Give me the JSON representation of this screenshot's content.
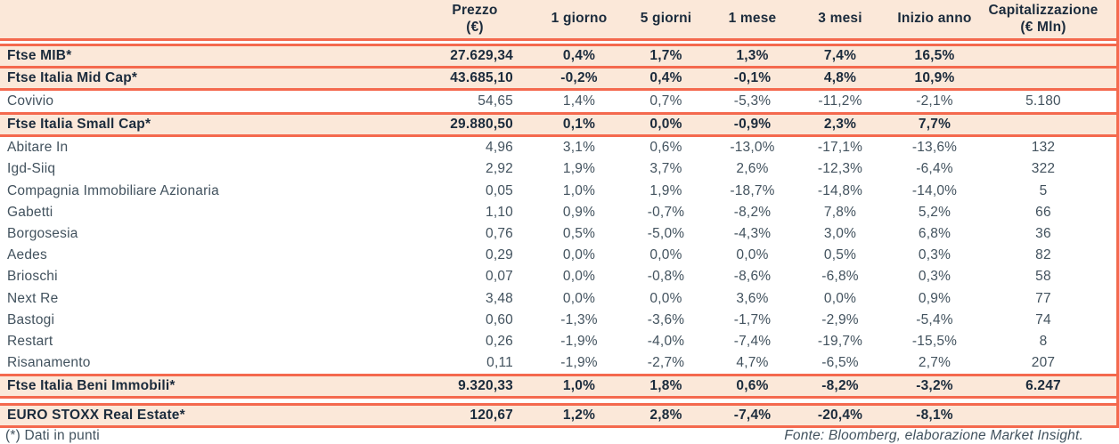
{
  "colors": {
    "accent_line": "#f4694e",
    "highlight_row_bg": "#fbe8d9",
    "heading_text": "#1b2b3c",
    "body_text": "#42525e"
  },
  "chart_data": {
    "type": "table",
    "header": {
      "name": "",
      "prezzo_title": "Prezzo",
      "prezzo_unit": "(€)",
      "periods": [
        "1 giorno",
        "5 giorni",
        "1 mese",
        "3 mesi",
        "Inizio anno"
      ],
      "cap_title": "Capitalizzazione",
      "cap_unit": "(€ Mln)"
    },
    "rows": [
      {
        "name": "Ftse MIB*",
        "kind": "index",
        "prezzo": "27.629,34",
        "d1": "0,4%",
        "d5": "1,7%",
        "m1": "1,3%",
        "m3": "7,4%",
        "ytd": "16,5%",
        "cap": ""
      },
      {
        "name": "Ftse Italia Mid Cap*",
        "kind": "index",
        "prezzo": "43.685,10",
        "d1": "-0,2%",
        "d5": "0,4%",
        "m1": "-0,1%",
        "m3": "4,8%",
        "ytd": "10,9%",
        "cap": ""
      },
      {
        "name": "Covivio",
        "kind": "stock",
        "prezzo": "54,65",
        "d1": "1,4%",
        "d5": "0,7%",
        "m1": "-5,3%",
        "m3": "-11,2%",
        "ytd": "-2,1%",
        "cap": "5.180"
      },
      {
        "name": "Ftse Italia Small Cap*",
        "kind": "index",
        "prezzo": "29.880,50",
        "d1": "0,1%",
        "d5": "0,0%",
        "m1": "-0,9%",
        "m3": "2,3%",
        "ytd": "7,7%",
        "cap": ""
      },
      {
        "name": "Abitare In",
        "kind": "stock",
        "prezzo": "4,96",
        "d1": "3,1%",
        "d5": "0,6%",
        "m1": "-13,0%",
        "m3": "-17,1%",
        "ytd": "-13,6%",
        "cap": "132"
      },
      {
        "name": "Igd-Siiq",
        "kind": "stock",
        "prezzo": "2,92",
        "d1": "1,9%",
        "d5": "3,7%",
        "m1": "2,6%",
        "m3": "-12,3%",
        "ytd": "-6,4%",
        "cap": "322"
      },
      {
        "name": "Compagnia Immobiliare Azionaria",
        "kind": "stock",
        "prezzo": "0,05",
        "d1": "1,0%",
        "d5": "1,9%",
        "m1": "-18,7%",
        "m3": "-14,8%",
        "ytd": "-14,0%",
        "cap": "5"
      },
      {
        "name": "Gabetti",
        "kind": "stock",
        "prezzo": "1,10",
        "d1": "0,9%",
        "d5": "-0,7%",
        "m1": "-8,2%",
        "m3": "7,8%",
        "ytd": "5,2%",
        "cap": "66"
      },
      {
        "name": "Borgosesia",
        "kind": "stock",
        "prezzo": "0,76",
        "d1": "0,5%",
        "d5": "-5,0%",
        "m1": "-4,3%",
        "m3": "3,0%",
        "ytd": "6,8%",
        "cap": "36"
      },
      {
        "name": "Aedes",
        "kind": "stock",
        "prezzo": "0,29",
        "d1": "0,0%",
        "d5": "0,0%",
        "m1": "0,0%",
        "m3": "0,5%",
        "ytd": "0,3%",
        "cap": "82"
      },
      {
        "name": "Brioschi",
        "kind": "stock",
        "prezzo": "0,07",
        "d1": "0,0%",
        "d5": "-0,8%",
        "m1": "-8,6%",
        "m3": "-6,8%",
        "ytd": "0,3%",
        "cap": "58"
      },
      {
        "name": "Next Re",
        "kind": "stock",
        "prezzo": "3,48",
        "d1": "0,0%",
        "d5": "0,0%",
        "m1": "3,6%",
        "m3": "0,0%",
        "ytd": "0,9%",
        "cap": "77"
      },
      {
        "name": "Bastogi",
        "kind": "stock",
        "prezzo": "0,60",
        "d1": "-1,3%",
        "d5": "-3,6%",
        "m1": "-1,7%",
        "m3": "-2,9%",
        "ytd": "-5,4%",
        "cap": "74"
      },
      {
        "name": "Restart",
        "kind": "stock",
        "prezzo": "0,26",
        "d1": "-1,9%",
        "d5": "-4,0%",
        "m1": "-7,4%",
        "m3": "-19,7%",
        "ytd": "-15,5%",
        "cap": "8"
      },
      {
        "name": "Risanamento",
        "kind": "stock",
        "prezzo": "0,11",
        "d1": "-1,9%",
        "d5": "-2,7%",
        "m1": "4,7%",
        "m3": "-6,5%",
        "ytd": "2,7%",
        "cap": "207"
      },
      {
        "name": "Ftse Italia Beni Immobili*",
        "kind": "index",
        "prezzo": "9.320,33",
        "d1": "1,0%",
        "d5": "1,8%",
        "m1": "0,6%",
        "m3": "-8,2%",
        "ytd": "-3,2%",
        "cap": "6.247"
      },
      {
        "name": "EURO STOXX Real Estate*",
        "kind": "index",
        "prezzo": "120,67",
        "d1": "1,2%",
        "d5": "2,8%",
        "m1": "-7,4%",
        "m3": "-20,4%",
        "ytd": "-8,1%",
        "cap": ""
      }
    ]
  },
  "footer": {
    "note": "(*) Dati in punti",
    "source": "Fonte: Bloomberg, elaborazione Market Insight."
  }
}
